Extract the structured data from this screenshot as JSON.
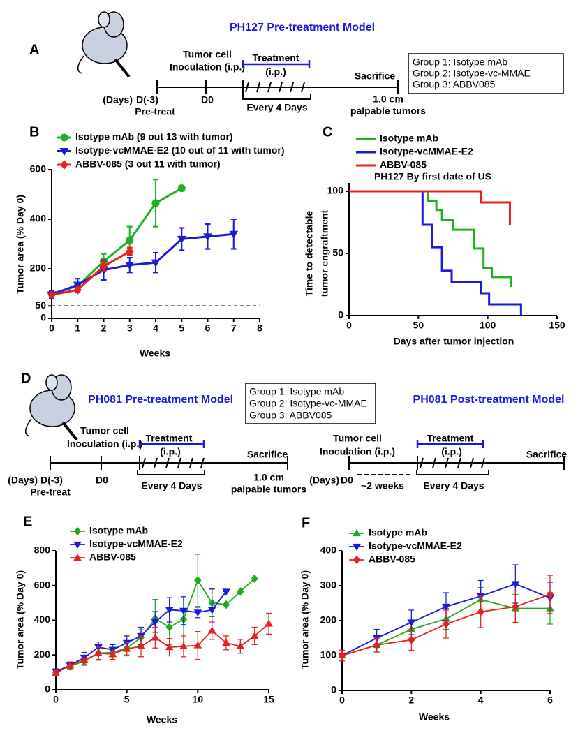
{
  "diagram_a": {
    "panel": "A",
    "title": "PH127 Pre-treatment Model",
    "inoculation": [
      "Tumor cell",
      "Inoculation (i.p.)"
    ],
    "treatment": "Treatment",
    "route": "(i.p.)",
    "schedule": "Every 4 Days",
    "sacrifice": "Sacrifice",
    "endpoint": [
      "1.0 cm",
      "palpable tumors"
    ],
    "days_label": "(Days)",
    "start": "D(-3)",
    "start_note": "Pre-treat",
    "d0": "D0",
    "groups": [
      "Group 1: Isotype mAb",
      "Group 2: Isotype-vc-MMAE",
      "Group 3: ABBV085"
    ]
  },
  "diagram_d_pre": {
    "panel": "D",
    "title": "PH081 Pre-treatment Model",
    "inoculation": [
      "Tumor cell",
      "Inoculation (i.p.)"
    ],
    "treatment": "Treatment",
    "route": "(i.p.)",
    "schedule": "Every 4 Days",
    "sacrifice": "Sacrifice",
    "endpoint": [
      "1.0 cm",
      "palpable tumors"
    ],
    "days_label": "(Days)",
    "start": "D(-3)",
    "start_note": "Pre-treat",
    "d0": "D0",
    "groups": [
      "Group 1: Isotype mAb",
      "Group 2: Isotype-vc-MMAE",
      "Group 3: ABBV085"
    ]
  },
  "diagram_d_post": {
    "title": "PH081 Post-treatment Model",
    "inoculation": [
      "Tumor cell",
      "Inoculation (i.p.)"
    ],
    "treatment": "Treatment",
    "route": "(i.p.)",
    "schedule": "Every 4 Days",
    "sacrifice": "Sacrifice",
    "days_label": "(Days)",
    "d0": "D0",
    "gap": "~2 weeks"
  },
  "chart_data": [
    {
      "panel": "B",
      "type": "line",
      "xlabel": "Weeks",
      "ylabel": "Tumor area (% Day 0)",
      "xlim": [
        0,
        8
      ],
      "xticks": [
        0,
        1,
        2,
        3,
        4,
        5,
        6,
        7,
        8
      ],
      "ylim": [
        0,
        600
      ],
      "yticks": [
        0,
        50,
        200,
        400,
        600
      ],
      "reference_line": 50,
      "series": [
        {
          "name": "Isotype mAb (9 out 13 with tumor)",
          "color": "#22b022",
          "marker": "circle",
          "x": [
            0,
            1,
            2,
            3,
            4,
            5
          ],
          "values": [
            100,
            130,
            230,
            315,
            465,
            525
          ],
          "errors": [
            10,
            15,
            30,
            55,
            95,
            0
          ]
        },
        {
          "name": "Isotype-vcMMAE-E2 (10 out of 11 with tumor)",
          "color": "#1a1adb",
          "marker": "triangle-down",
          "x": [
            0,
            1,
            2,
            3,
            4,
            5,
            6,
            7
          ],
          "values": [
            95,
            135,
            195,
            215,
            225,
            320,
            330,
            340
          ],
          "errors": [
            15,
            25,
            40,
            30,
            40,
            45,
            50,
            60
          ]
        },
        {
          "name": "ABBV-085 (3 out 11 with tumor)",
          "color": "#e82020",
          "marker": "diamond",
          "x": [
            0,
            1,
            2,
            3
          ],
          "values": [
            95,
            115,
            210,
            270
          ],
          "errors": [
            8,
            10,
            20,
            15
          ]
        }
      ]
    },
    {
      "panel": "C",
      "type": "step",
      "title": "PH127 By first date of US",
      "xlabel": "Days after tumor injection",
      "ylabel": [
        "Time to detectable",
        "tumor engraftment"
      ],
      "xlim": [
        0,
        150
      ],
      "xticks": [
        0,
        50,
        100,
        150
      ],
      "ylim": [
        0,
        100
      ],
      "yticks": [
        0,
        50,
        100
      ],
      "series": [
        {
          "name": "Isotype mAb",
          "color": "#22b022",
          "x": [
            0,
            57,
            63,
            67,
            75,
            90,
            97,
            103,
            117
          ],
          "values": [
            100,
            92,
            85,
            77,
            69,
            54,
            38,
            31,
            23
          ]
        },
        {
          "name": "Isotype-vcMMAE-E2",
          "color": "#1a1adb",
          "x": [
            0,
            53,
            60,
            67,
            74,
            95,
            101,
            124
          ],
          "values": [
            100,
            73,
            55,
            36,
            27,
            18,
            9,
            0
          ]
        },
        {
          "name": "ABBV-085",
          "color": "#e82020",
          "x": [
            0,
            95,
            116
          ],
          "values": [
            100,
            91,
            73
          ]
        }
      ]
    },
    {
      "panel": "E",
      "type": "line",
      "xlabel": "Weeks",
      "ylabel": "Tumor area (% Day 0)",
      "xlim": [
        0,
        15
      ],
      "xticks": [
        0,
        5,
        10,
        15
      ],
      "ylim": [
        0,
        800
      ],
      "yticks": [
        0,
        200,
        400,
        600,
        800
      ],
      "series": [
        {
          "name": "Isotype mAb",
          "color": "#22aa22",
          "marker": "diamond",
          "x": [
            0,
            1,
            2,
            3,
            4,
            5,
            6,
            7,
            8,
            9,
            10,
            11,
            12,
            13,
            14
          ],
          "values": [
            100,
            135,
            165,
            210,
            215,
            240,
            300,
            410,
            360,
            405,
            630,
            500,
            490,
            565,
            640
          ],
          "errors": [
            15,
            20,
            25,
            40,
            30,
            40,
            45,
            110,
            100,
            130,
            150,
            80,
            0,
            0,
            0
          ]
        },
        {
          "name": "Isotype-vcMMAE-E2",
          "color": "#1a1adb",
          "marker": "triangle-down",
          "x": [
            0,
            1,
            2,
            3,
            4,
            5,
            6,
            7,
            8,
            9,
            10,
            11,
            12
          ],
          "values": [
            105,
            140,
            185,
            245,
            230,
            270,
            310,
            390,
            460,
            455,
            445,
            460,
            565
          ],
          "errors": [
            15,
            20,
            30,
            30,
            30,
            40,
            50,
            60,
            70,
            80,
            30,
            120,
            0
          ]
        },
        {
          "name": "ABBV-085",
          "color": "#e82020",
          "marker": "triangle-up",
          "x": [
            0,
            1,
            2,
            3,
            4,
            5,
            6,
            7,
            8,
            9,
            10,
            11,
            12,
            13,
            14,
            15
          ],
          "values": [
            95,
            140,
            170,
            210,
            205,
            235,
            250,
            300,
            245,
            250,
            255,
            340,
            270,
            250,
            310,
            380
          ],
          "errors": [
            15,
            20,
            25,
            35,
            30,
            40,
            60,
            60,
            50,
            60,
            80,
            50,
            40,
            40,
            50,
            60
          ]
        }
      ]
    },
    {
      "panel": "F",
      "type": "line",
      "xlabel": "Weeks",
      "ylabel": "Tumor area (% Day 0)",
      "xlim": [
        0,
        6
      ],
      "xticks": [
        0,
        2,
        4,
        6
      ],
      "ylim": [
        0,
        400
      ],
      "yticks": [
        0,
        100,
        200,
        300,
        400
      ],
      "series": [
        {
          "name": "Isotype mAb",
          "color": "#22aa22",
          "marker": "triangle-up",
          "x": [
            0,
            1,
            2,
            3,
            4,
            5,
            6
          ],
          "values": [
            100,
            130,
            175,
            205,
            260,
            235,
            235
          ],
          "errors": [
            15,
            20,
            25,
            30,
            35,
            40,
            45
          ]
        },
        {
          "name": "Isotype-vcMMAE-E2",
          "color": "#1a1adb",
          "marker": "triangle-down",
          "x": [
            0,
            1,
            2,
            3,
            4,
            5,
            6
          ],
          "values": [
            100,
            150,
            195,
            240,
            270,
            305,
            265
          ],
          "errors": [
            15,
            25,
            35,
            40,
            45,
            55,
            45
          ]
        },
        {
          "name": "ABBV-085",
          "color": "#e82020",
          "marker": "diamond",
          "x": [
            0,
            1,
            2,
            3,
            4,
            5,
            6
          ],
          "values": [
            100,
            130,
            145,
            190,
            225,
            240,
            275
          ],
          "errors": [
            15,
            20,
            30,
            40,
            45,
            45,
            55
          ]
        }
      ]
    }
  ]
}
